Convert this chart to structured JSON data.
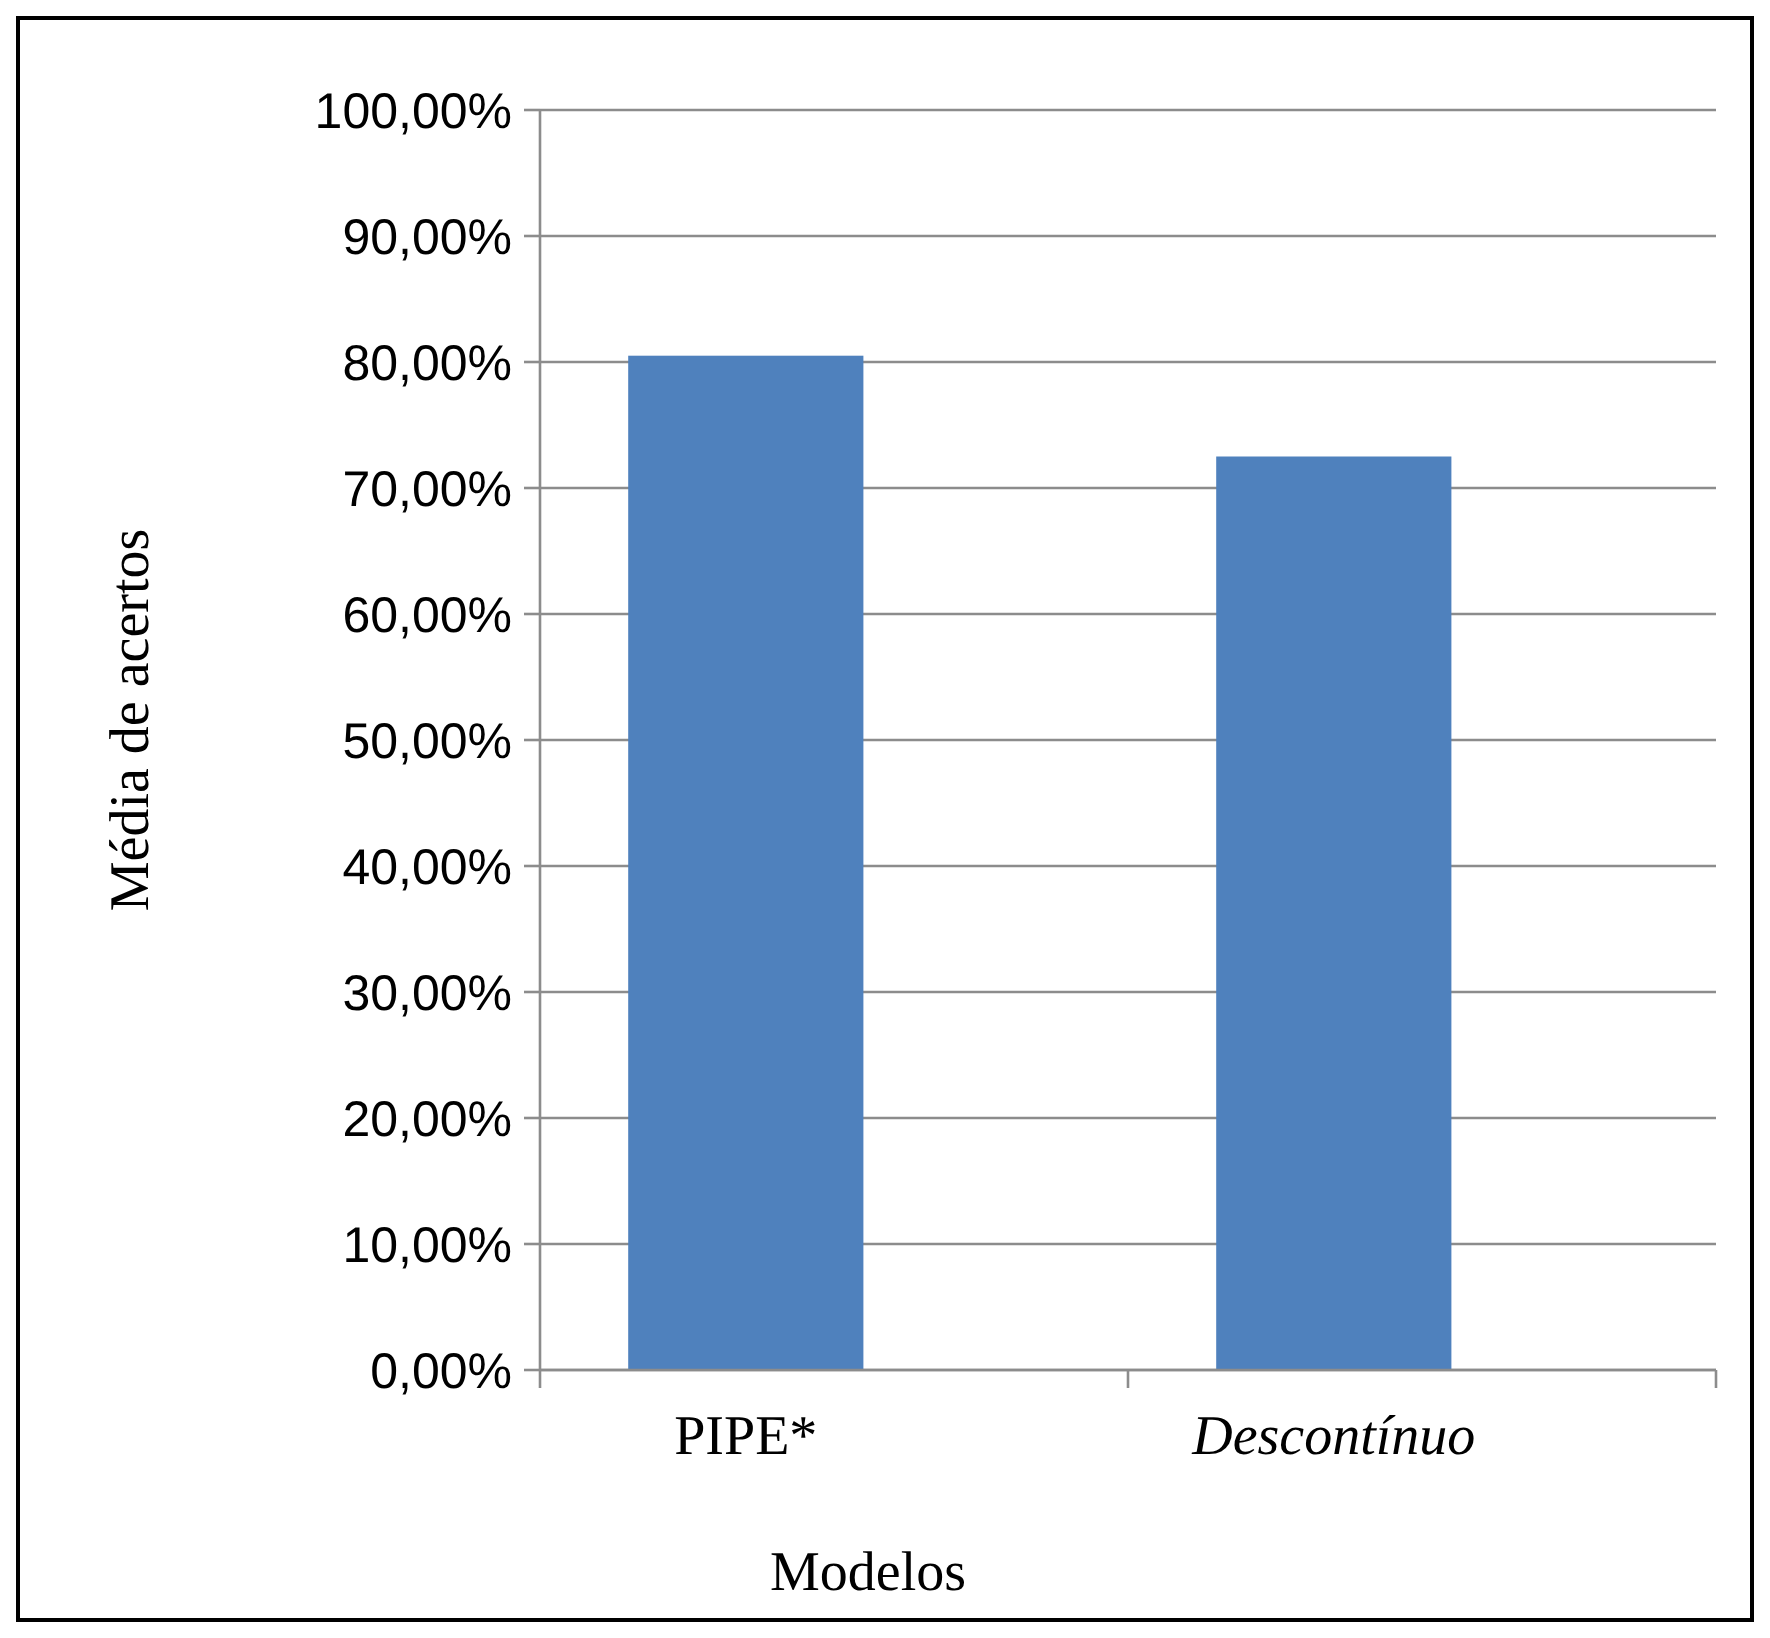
{
  "chart_data": {
    "type": "bar",
    "xlabel": "Modelos",
    "ylabel": "Média de acertos",
    "categories": [
      "PIPE*",
      "Descontínuo"
    ],
    "values": [
      80.5,
      72.5
    ],
    "color": "#4f81bd",
    "ylim": [
      0,
      100
    ],
    "yticks": [
      {
        "value": 0,
        "label": "0,00%"
      },
      {
        "value": 10,
        "label": "10,00%"
      },
      {
        "value": 20,
        "label": "20,00%"
      },
      {
        "value": 30,
        "label": "30,00%"
      },
      {
        "value": 40,
        "label": "40,00%"
      },
      {
        "value": 50,
        "label": "50,00%"
      },
      {
        "value": 60,
        "label": "60,00%"
      },
      {
        "value": 70,
        "label": "70,00%"
      },
      {
        "value": 80,
        "label": "80,00%"
      },
      {
        "value": 90,
        "label": "90,00%"
      },
      {
        "value": 100,
        "label": "100,00%"
      }
    ],
    "grid": "y"
  }
}
